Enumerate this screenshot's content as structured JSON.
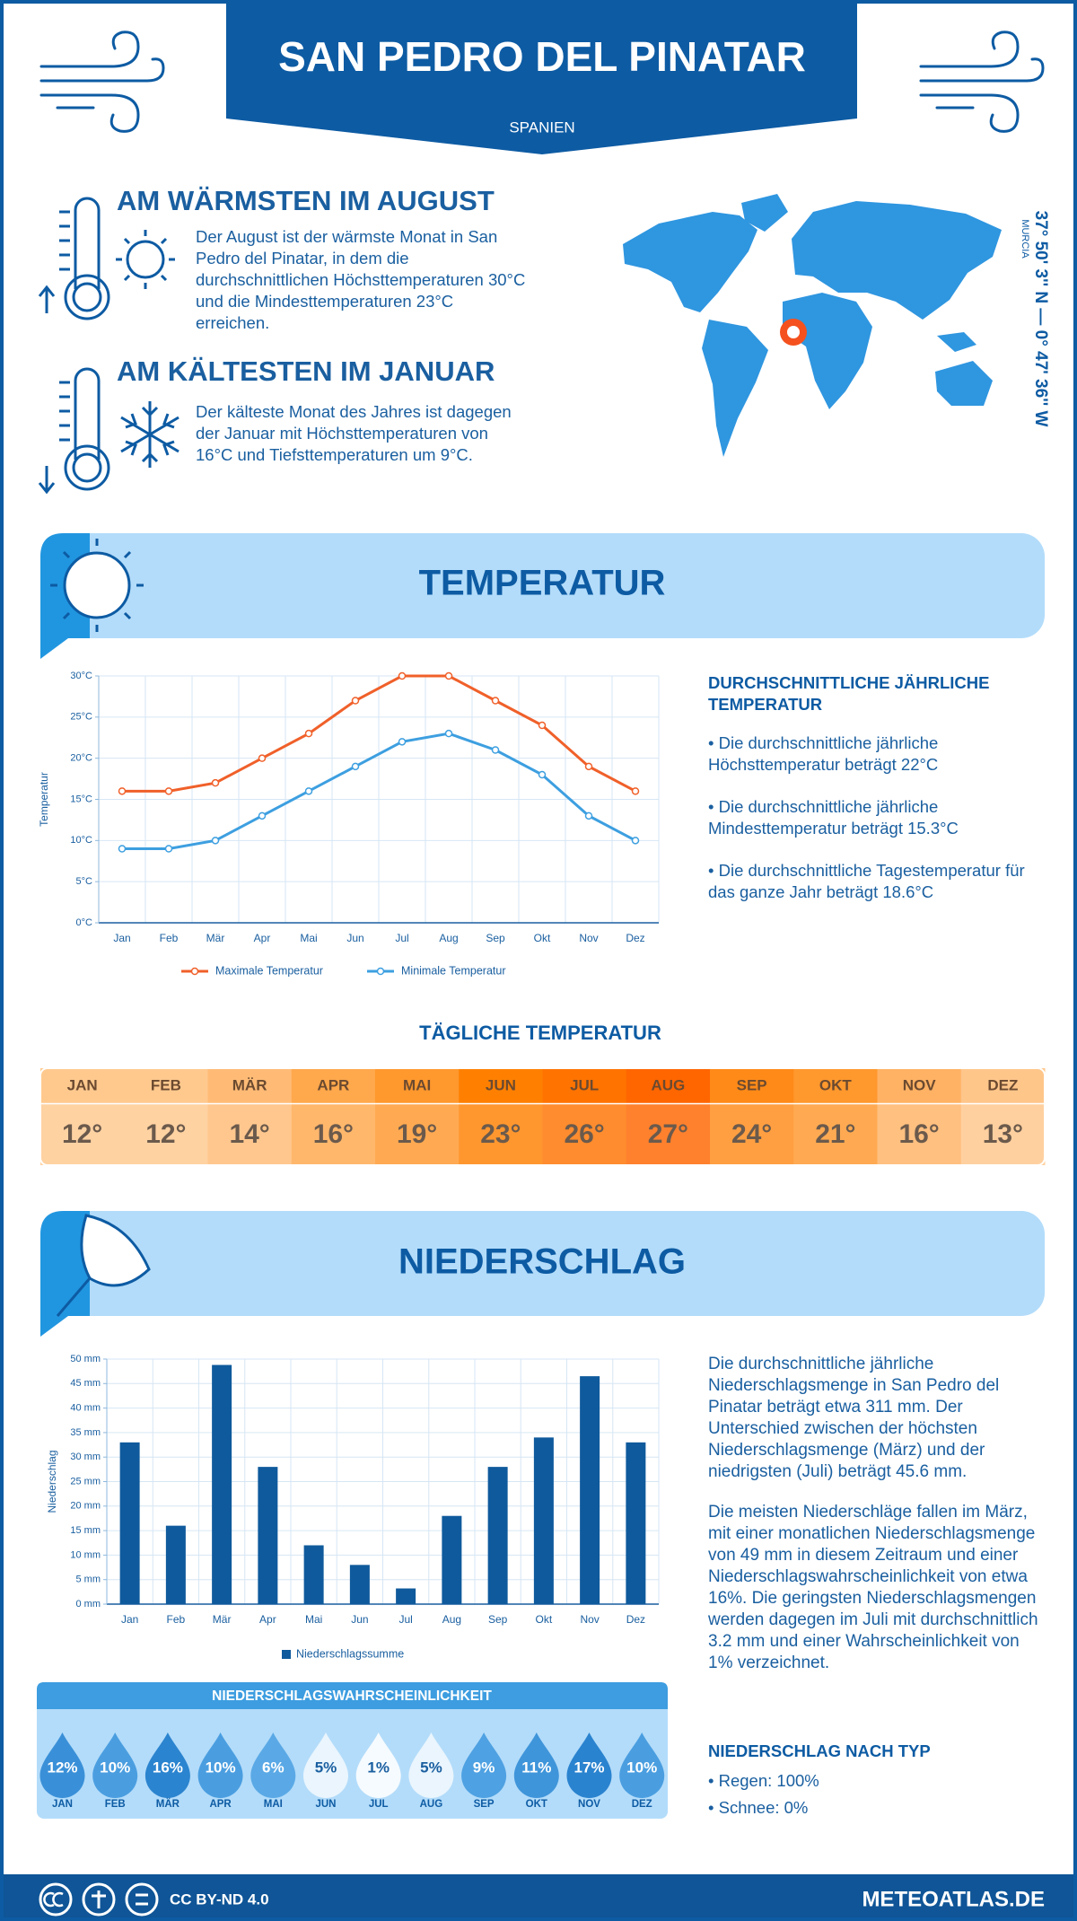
{
  "header": {
    "title": "SAN PEDRO DEL PINATAR",
    "country": "SPANIEN"
  },
  "highlights": [
    {
      "heading": "AM WÄRMSTEN IM AUGUST",
      "text": "Der August ist der wärmste Monat in San Pedro del Pinatar, in dem die durchschnittlichen Höchsttemperaturen 30°C und die Mindesttemperaturen 23°C erreichen."
    },
    {
      "heading": "AM KÄLTESTEN IM JANUAR",
      "text": "Der kälteste Monat des Jahres ist dagegen der Januar mit Höchsttemperaturen von 16°C und Tiefsttemperaturen um 9°C."
    }
  ],
  "location": {
    "coordinates": "37° 50' 3'' N — 0° 47' 36'' W",
    "region": "MURCIA"
  },
  "sections": {
    "temperature": "TEMPERATUR",
    "precipitation": "NIEDERSCHLAG"
  },
  "chart_data": [
    {
      "type": "line",
      "y_label": "Temperatur",
      "categories": [
        "Jan",
        "Feb",
        "Mär",
        "Apr",
        "Mai",
        "Jun",
        "Jul",
        "Aug",
        "Sep",
        "Okt",
        "Nov",
        "Dez"
      ],
      "series": [
        {
          "name": "Maximale Temperatur",
          "color": "#f0602a",
          "values": [
            16,
            16,
            17,
            20,
            23,
            27,
            30,
            30,
            27,
            24,
            19,
            16
          ]
        },
        {
          "name": "Minimale Temperatur",
          "color": "#3d9fe0",
          "values": [
            9,
            9,
            10,
            13,
            16,
            19,
            22,
            23,
            21,
            18,
            13,
            10
          ]
        }
      ],
      "ylim": [
        0,
        30
      ],
      "yticks": [
        {
          "value": 0,
          "label": "0°C"
        },
        {
          "value": 5,
          "label": "5°C"
        },
        {
          "value": 10,
          "label": "10°C"
        },
        {
          "value": 15,
          "label": "15°C"
        },
        {
          "value": 20,
          "label": "20°C"
        },
        {
          "value": 25,
          "label": "25°C"
        },
        {
          "value": 30,
          "label": "30°C"
        }
      ],
      "grid": true
    },
    {
      "type": "bar",
      "y_label": "Niederschlag",
      "categories": [
        "Jan",
        "Feb",
        "Mär",
        "Apr",
        "Mai",
        "Jun",
        "Jul",
        "Aug",
        "Sep",
        "Okt",
        "Nov",
        "Dez"
      ],
      "series": [
        {
          "name": "Niederschlagssumme",
          "color": "#0f5a9c",
          "values": [
            33,
            16,
            48.8,
            28,
            12,
            8,
            3.2,
            18,
            28,
            34,
            46.5,
            33
          ]
        }
      ],
      "ylim": [
        0,
        50
      ],
      "yticks": [
        {
          "value": 0,
          "label": "0 mm"
        },
        {
          "value": 5,
          "label": "5 mm"
        },
        {
          "value": 10,
          "label": "10 mm"
        },
        {
          "value": 15,
          "label": "15 mm"
        },
        {
          "value": 20,
          "label": "20 mm"
        },
        {
          "value": 25,
          "label": "25 mm"
        },
        {
          "value": 30,
          "label": "30 mm"
        },
        {
          "value": 35,
          "label": "35 mm"
        },
        {
          "value": 40,
          "label": "40 mm"
        },
        {
          "value": 45,
          "label": "45 mm"
        },
        {
          "value": 50,
          "label": "50 mm"
        }
      ],
      "grid": true
    }
  ],
  "temperature_summary": {
    "heading": "DURCHSCHNITTLICHE JÄHRLICHE TEMPERATUR",
    "bullets": [
      "• Die durchschnittliche jährliche Höchsttemperatur beträgt 22°C",
      "• Die durchschnittliche jährliche Mindesttemperatur beträgt 15.3°C",
      "• Die durchschnittliche Tagestemperatur für das ganze Jahr beträgt 18.6°C"
    ]
  },
  "daily_temperature": {
    "title": "TÄGLICHE TEMPERATUR",
    "months": [
      "JAN",
      "FEB",
      "MÄR",
      "APR",
      "MAI",
      "JUN",
      "JUL",
      "AUG",
      "SEP",
      "OKT",
      "NOV",
      "DEZ"
    ],
    "values": [
      "12°",
      "12°",
      "14°",
      "16°",
      "19°",
      "23°",
      "26°",
      "27°",
      "24°",
      "21°",
      "16°",
      "13°"
    ],
    "colors": [
      "#ffc98e",
      "#ffc98e",
      "#ffbb76",
      "#ffa84c",
      "#ff982d",
      "#ff8000",
      "#ff7300",
      "#ff6600",
      "#ff8a18",
      "#ff982d",
      "#ffb264",
      "#ffc68a"
    ]
  },
  "precipitation_summary": {
    "paragraphs": [
      "Die durchschnittliche jährliche Niederschlagsmenge in San Pedro del Pinatar beträgt etwa 311 mm. Der Unterschied zwischen der höchsten Niederschlagsmenge (März) und der niedrigsten (Juli) beträgt 45.6 mm.",
      "Die meisten Niederschläge fallen im März, mit einer monatlichen Niederschlagsmenge von 49 mm in diesem Zeitraum und einer Niederschlagswahrscheinlichkeit von etwa 16%. Die geringsten Niederschlagsmengen werden dagegen im Juli mit durchschnittlich 3.2 mm und einer Wahrscheinlichkeit von 1% verzeichnet."
    ],
    "type_heading": "NIEDERSCHLAG NACH TYP",
    "type_bullets": [
      "• Regen: 100%",
      "• Schnee: 0%"
    ]
  },
  "precipitation_probability": {
    "title": "NIEDERSCHLAGSWAHRSCHEINLICHKEIT",
    "months": [
      "JAN",
      "FEB",
      "MÄR",
      "APR",
      "MAI",
      "JUN",
      "JUL",
      "AUG",
      "SEP",
      "OKT",
      "NOV",
      "DEZ"
    ],
    "values": [
      "12%",
      "10%",
      "16%",
      "10%",
      "6%",
      "5%",
      "1%",
      "5%",
      "9%",
      "11%",
      "17%",
      "10%"
    ],
    "colors": [
      "#3a90d8",
      "#4a9ee0",
      "#2b84cf",
      "#4a9ee0",
      "#5aa9e6",
      "#eaf5fd",
      "#f6fbff",
      "#eaf5fd",
      "#4ea1e2",
      "#3f95da",
      "#2a83cf",
      "#4a9ee0"
    ]
  },
  "footer": {
    "license": "CC BY-ND 4.0",
    "site": "METEOATLAS.DE"
  }
}
